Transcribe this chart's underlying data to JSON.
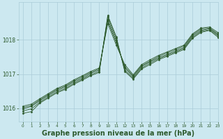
{
  "background_color": "#cce8f0",
  "grid_color": "#aaccd8",
  "line_color": "#2d5a2d",
  "xlabel": "Graphe pression niveau de la mer (hPa)",
  "xlabel_fontsize": 7.0,
  "xlim": [
    -0.5,
    23
  ],
  "ylim": [
    1015.6,
    1019.1
  ],
  "yticks": [
    1016,
    1017,
    1018
  ],
  "xticks": [
    0,
    1,
    2,
    3,
    4,
    5,
    6,
    7,
    8,
    9,
    10,
    11,
    12,
    13,
    14,
    15,
    16,
    17,
    18,
    19,
    20,
    21,
    22,
    23
  ],
  "series": [
    {
      "x": [
        0,
        1,
        2,
        3,
        4,
        5,
        6,
        7,
        8,
        9,
        10,
        11,
        12,
        13,
        14,
        15,
        16,
        17,
        18,
        19,
        20,
        21,
        22,
        23
      ],
      "y": [
        1015.85,
        1015.9,
        1016.15,
        1016.3,
        1016.45,
        1016.55,
        1016.7,
        1016.82,
        1016.95,
        1017.05,
        1018.72,
        1018.1,
        1017.08,
        1016.85,
        1017.15,
        1017.28,
        1017.42,
        1017.52,
        1017.62,
        1017.72,
        1018.05,
        1018.22,
        1018.28,
        1018.08
      ]
    },
    {
      "x": [
        0,
        1,
        2,
        3,
        4,
        5,
        6,
        7,
        8,
        9,
        10,
        11,
        12,
        13,
        14,
        15,
        16,
        17,
        18,
        19,
        20,
        21,
        22,
        23
      ],
      "y": [
        1015.92,
        1015.98,
        1016.18,
        1016.33,
        1016.48,
        1016.58,
        1016.73,
        1016.85,
        1016.98,
        1017.08,
        1018.68,
        1018.05,
        1017.12,
        1016.88,
        1017.18,
        1017.32,
        1017.45,
        1017.55,
        1017.65,
        1017.75,
        1018.08,
        1018.25,
        1018.3,
        1018.12
      ]
    },
    {
      "x": [
        0,
        1,
        2,
        3,
        4,
        5,
        6,
        7,
        8,
        9,
        10,
        11,
        12,
        13,
        14,
        15,
        16,
        17,
        18,
        19,
        20,
        21,
        22,
        23
      ],
      "y": [
        1015.98,
        1016.05,
        1016.22,
        1016.37,
        1016.52,
        1016.62,
        1016.77,
        1016.88,
        1017.02,
        1017.12,
        1018.6,
        1017.98,
        1017.18,
        1016.92,
        1017.22,
        1017.36,
        1017.48,
        1017.58,
        1017.68,
        1017.78,
        1018.12,
        1018.28,
        1018.33,
        1018.15
      ]
    },
    {
      "x": [
        0,
        1,
        2,
        3,
        4,
        5,
        6,
        7,
        8,
        9,
        10,
        11,
        12,
        13,
        14,
        15,
        16,
        17,
        18,
        19,
        20,
        21,
        22,
        23
      ],
      "y": [
        1016.02,
        1016.08,
        1016.25,
        1016.4,
        1016.55,
        1016.65,
        1016.8,
        1016.92,
        1017.05,
        1017.15,
        1018.55,
        1017.92,
        1017.22,
        1016.95,
        1017.25,
        1017.38,
        1017.52,
        1017.62,
        1017.72,
        1017.82,
        1018.15,
        1018.32,
        1018.35,
        1018.18
      ]
    },
    {
      "x": [
        0,
        1,
        2,
        3,
        4,
        5,
        6,
        7,
        8,
        9,
        10,
        11,
        12,
        13,
        14,
        15,
        16,
        17,
        18,
        19,
        20,
        21,
        22,
        23
      ],
      "y": [
        1016.06,
        1016.12,
        1016.28,
        1016.43,
        1016.58,
        1016.68,
        1016.83,
        1016.95,
        1017.08,
        1017.18,
        1018.48,
        1017.85,
        1017.28,
        1016.98,
        1017.28,
        1017.42,
        1017.55,
        1017.65,
        1017.75,
        1017.85,
        1018.18,
        1018.35,
        1018.38,
        1018.22
      ]
    }
  ]
}
